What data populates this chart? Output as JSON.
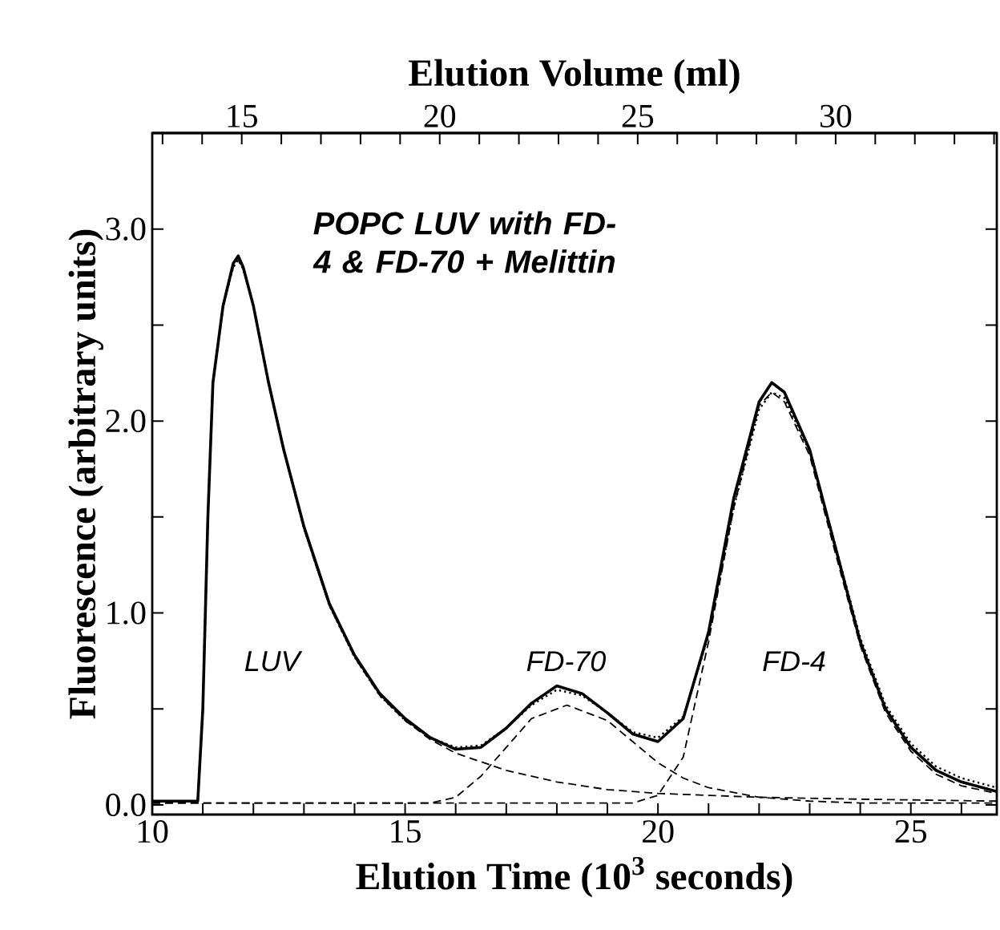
{
  "chart_data": {
    "type": "line",
    "title": "POPC LUV with FD-4 & FD-70 + Melittin",
    "xlabel": "Elution Time  (10$^{3}$ seconds)",
    "ylabel": "Fluorescence (arbitrary units)",
    "x2label": "Elution Volume (ml)",
    "xlim": [
      10,
      26.7
    ],
    "ylim": [
      -0.05,
      3.5
    ],
    "x2lim": [
      12.74,
      34.07
    ],
    "xticks": [
      10,
      {
        "value": 11,
        "label": null
      },
      {
        "value": 12,
        "label": null
      },
      {
        "value": 13,
        "label": null
      },
      {
        "value": 14,
        "label": null
      },
      15,
      {
        "value": 16,
        "label": null
      },
      {
        "value": 17,
        "label": null
      },
      {
        "value": 18,
        "label": null
      },
      {
        "value": 19,
        "label": null
      },
      20,
      {
        "value": 21,
        "label": null
      },
      {
        "value": 22,
        "label": null
      },
      {
        "value": 23,
        "label": null
      },
      {
        "value": 24,
        "label": null
      },
      25,
      {
        "value": 26,
        "label": null
      }
    ],
    "x2ticks": [
      {
        "value": 13,
        "label": null
      },
      {
        "value": 14,
        "label": null
      },
      15,
      {
        "value": 16,
        "label": null
      },
      {
        "value": 17,
        "label": null
      },
      {
        "value": 18,
        "label": null
      },
      {
        "value": 19,
        "label": null
      },
      20,
      {
        "value": 21,
        "label": null
      },
      {
        "value": 22,
        "label": null
      },
      {
        "value": 23,
        "label": null
      },
      {
        "value": 24,
        "label": null
      },
      25,
      {
        "value": 26,
        "label": null
      },
      {
        "value": 27,
        "label": null
      },
      {
        "value": 28,
        "label": null
      },
      {
        "value": 29,
        "label": null
      },
      30,
      {
        "value": 31,
        "label": null
      },
      {
        "value": 32,
        "label": null
      },
      {
        "value": 33,
        "label": null
      },
      {
        "value": 34,
        "label": null
      }
    ],
    "yticks": [
      {
        "value": 0,
        "label": "0.0"
      },
      {
        "value": 0.5,
        "label": null
      },
      {
        "value": 1,
        "label": "1.0"
      },
      {
        "value": 1.5,
        "label": null
      },
      {
        "value": 2,
        "label": "2.0"
      },
      {
        "value": 2.5,
        "label": null
      },
      {
        "value": 3,
        "label": "3.0"
      }
    ],
    "series": [
      {
        "color": "#000000",
        "line_style": "solid",
        "x": [
          10.0,
          10.9,
          11.0,
          11.1,
          11.2,
          11.4,
          11.6,
          11.7,
          11.8,
          12.0,
          12.3,
          12.6,
          13.0,
          13.5,
          14.0,
          14.5,
          15.0,
          15.5,
          16.0,
          16.5,
          17.0,
          17.5,
          18.0,
          18.5,
          19.0,
          19.5,
          20.0,
          20.5,
          21.0,
          21.5,
          22.0,
          22.25,
          22.5,
          23.0,
          23.5,
          24.0,
          24.5,
          25.0,
          25.5,
          26.0,
          26.7
        ],
        "values": [
          0.02,
          0.02,
          0.5,
          1.5,
          2.2,
          2.6,
          2.82,
          2.86,
          2.8,
          2.6,
          2.2,
          1.85,
          1.45,
          1.05,
          0.78,
          0.58,
          0.45,
          0.35,
          0.29,
          0.3,
          0.4,
          0.53,
          0.62,
          0.58,
          0.48,
          0.37,
          0.33,
          0.45,
          0.9,
          1.6,
          2.1,
          2.2,
          2.15,
          1.85,
          1.35,
          0.85,
          0.5,
          0.3,
          0.18,
          0.12,
          0.07
        ]
      },
      {
        "color": "#000000",
        "line_style": "dotted",
        "x": [
          10.0,
          10.9,
          11.0,
          11.1,
          11.2,
          11.4,
          11.6,
          11.7,
          11.8,
          12.0,
          12.3,
          12.6,
          13.0,
          13.5,
          14.0,
          14.5,
          15.0,
          15.5,
          16.0,
          16.5,
          17.0,
          17.5,
          18.0,
          18.5,
          19.0,
          19.5,
          20.0,
          20.5,
          21.0,
          21.5,
          22.0,
          22.25,
          22.5,
          23.0,
          23.5,
          24.0,
          24.5,
          25.0,
          25.5,
          26.0,
          26.7
        ],
        "values": [
          0.02,
          0.02,
          0.5,
          1.5,
          2.2,
          2.6,
          2.8,
          2.84,
          2.79,
          2.6,
          2.2,
          1.85,
          1.44,
          1.04,
          0.77,
          0.57,
          0.44,
          0.35,
          0.3,
          0.31,
          0.4,
          0.52,
          0.6,
          0.57,
          0.48,
          0.38,
          0.35,
          0.46,
          0.88,
          1.55,
          2.06,
          2.15,
          2.12,
          1.84,
          1.36,
          0.87,
          0.52,
          0.32,
          0.2,
          0.14,
          0.09
        ]
      },
      {
        "color": "#000000",
        "line_style": "dashed",
        "x": [
          10.0,
          10.9,
          11.0,
          11.1,
          11.2,
          11.4,
          11.6,
          11.7,
          11.8,
          12.0,
          12.3,
          12.6,
          13.0,
          13.5,
          14.0,
          14.5,
          15.0,
          15.5,
          16.0,
          17.0,
          18.0,
          19.0,
          20.0,
          21.0,
          22.0,
          24.0,
          26.7
        ],
        "values": [
          0.02,
          0.02,
          0.5,
          1.5,
          2.2,
          2.6,
          2.8,
          2.84,
          2.79,
          2.6,
          2.2,
          1.85,
          1.44,
          1.04,
          0.77,
          0.57,
          0.44,
          0.34,
          0.27,
          0.18,
          0.12,
          0.08,
          0.06,
          0.05,
          0.04,
          0.03,
          0.02
        ]
      },
      {
        "color": "#000000",
        "line_style": "dashed",
        "x": [
          10.0,
          15.5,
          16.0,
          16.5,
          17.0,
          17.5,
          18.2,
          19.0,
          19.5,
          20.0,
          20.5,
          21.0,
          22.0,
          23.0,
          24.0,
          26.7
        ],
        "values": [
          0.01,
          0.01,
          0.04,
          0.15,
          0.3,
          0.45,
          0.52,
          0.44,
          0.33,
          0.22,
          0.14,
          0.09,
          0.04,
          0.02,
          0.01,
          0.01
        ]
      },
      {
        "color": "#000000",
        "line_style": "dashed",
        "x": [
          10.0,
          19.5,
          20.0,
          20.5,
          21.0,
          21.5,
          22.0,
          22.25,
          22.5,
          23.0,
          23.5,
          24.0,
          24.5,
          25.0,
          25.5,
          26.0,
          26.7
        ],
        "values": [
          0.01,
          0.01,
          0.05,
          0.25,
          0.85,
          1.55,
          2.08,
          2.15,
          2.1,
          1.82,
          1.32,
          0.83,
          0.48,
          0.28,
          0.16,
          0.1,
          0.06
        ]
      }
    ],
    "annotations": [
      "LUV",
      "FD-70",
      "FD-4"
    ]
  }
}
